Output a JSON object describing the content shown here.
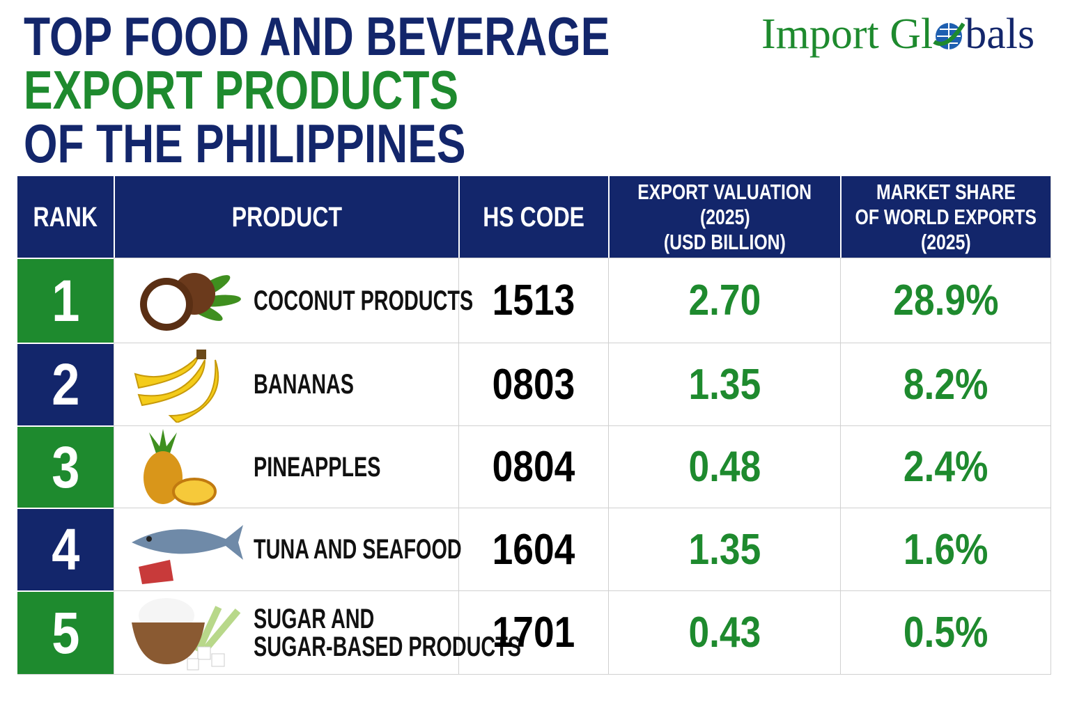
{
  "header": {
    "title_lines": [
      "TOP FOOD AND BEVERAGE",
      "EXPORT PRODUCTS",
      "OF THE PHILIPPINES"
    ],
    "logo": {
      "before_globe": "Import Gl",
      "after_globe": "bals"
    }
  },
  "table": {
    "headers": [
      [
        "RANK"
      ],
      [
        "PRODUCT"
      ],
      [
        "HS CODE"
      ],
      [
        "EXPORT VALUATION",
        "(2025)",
        "(USD BILLION)"
      ],
      [
        "MARKET SHARE",
        "OF WORLD EXPORTS",
        "(2025)"
      ]
    ],
    "rows": [
      [
        "1",
        [
          "COCONUT PRODUCTS"
        ],
        "1513",
        "2.70",
        "28.9%"
      ],
      [
        "2",
        [
          "BANANAS"
        ],
        "0803",
        "1.35",
        "8.2%"
      ],
      [
        "3",
        [
          "PINEAPPLES"
        ],
        "0804",
        "0.48",
        "2.4%"
      ],
      [
        "4",
        [
          "TUNA AND SEAFOOD"
        ],
        "1604",
        "1.35",
        "1.6%"
      ],
      [
        "5",
        [
          "SUGAR AND",
          "SUGAR-BASED PRODUCTS"
        ],
        "1701",
        "0.43",
        "0.5%"
      ]
    ]
  }
}
